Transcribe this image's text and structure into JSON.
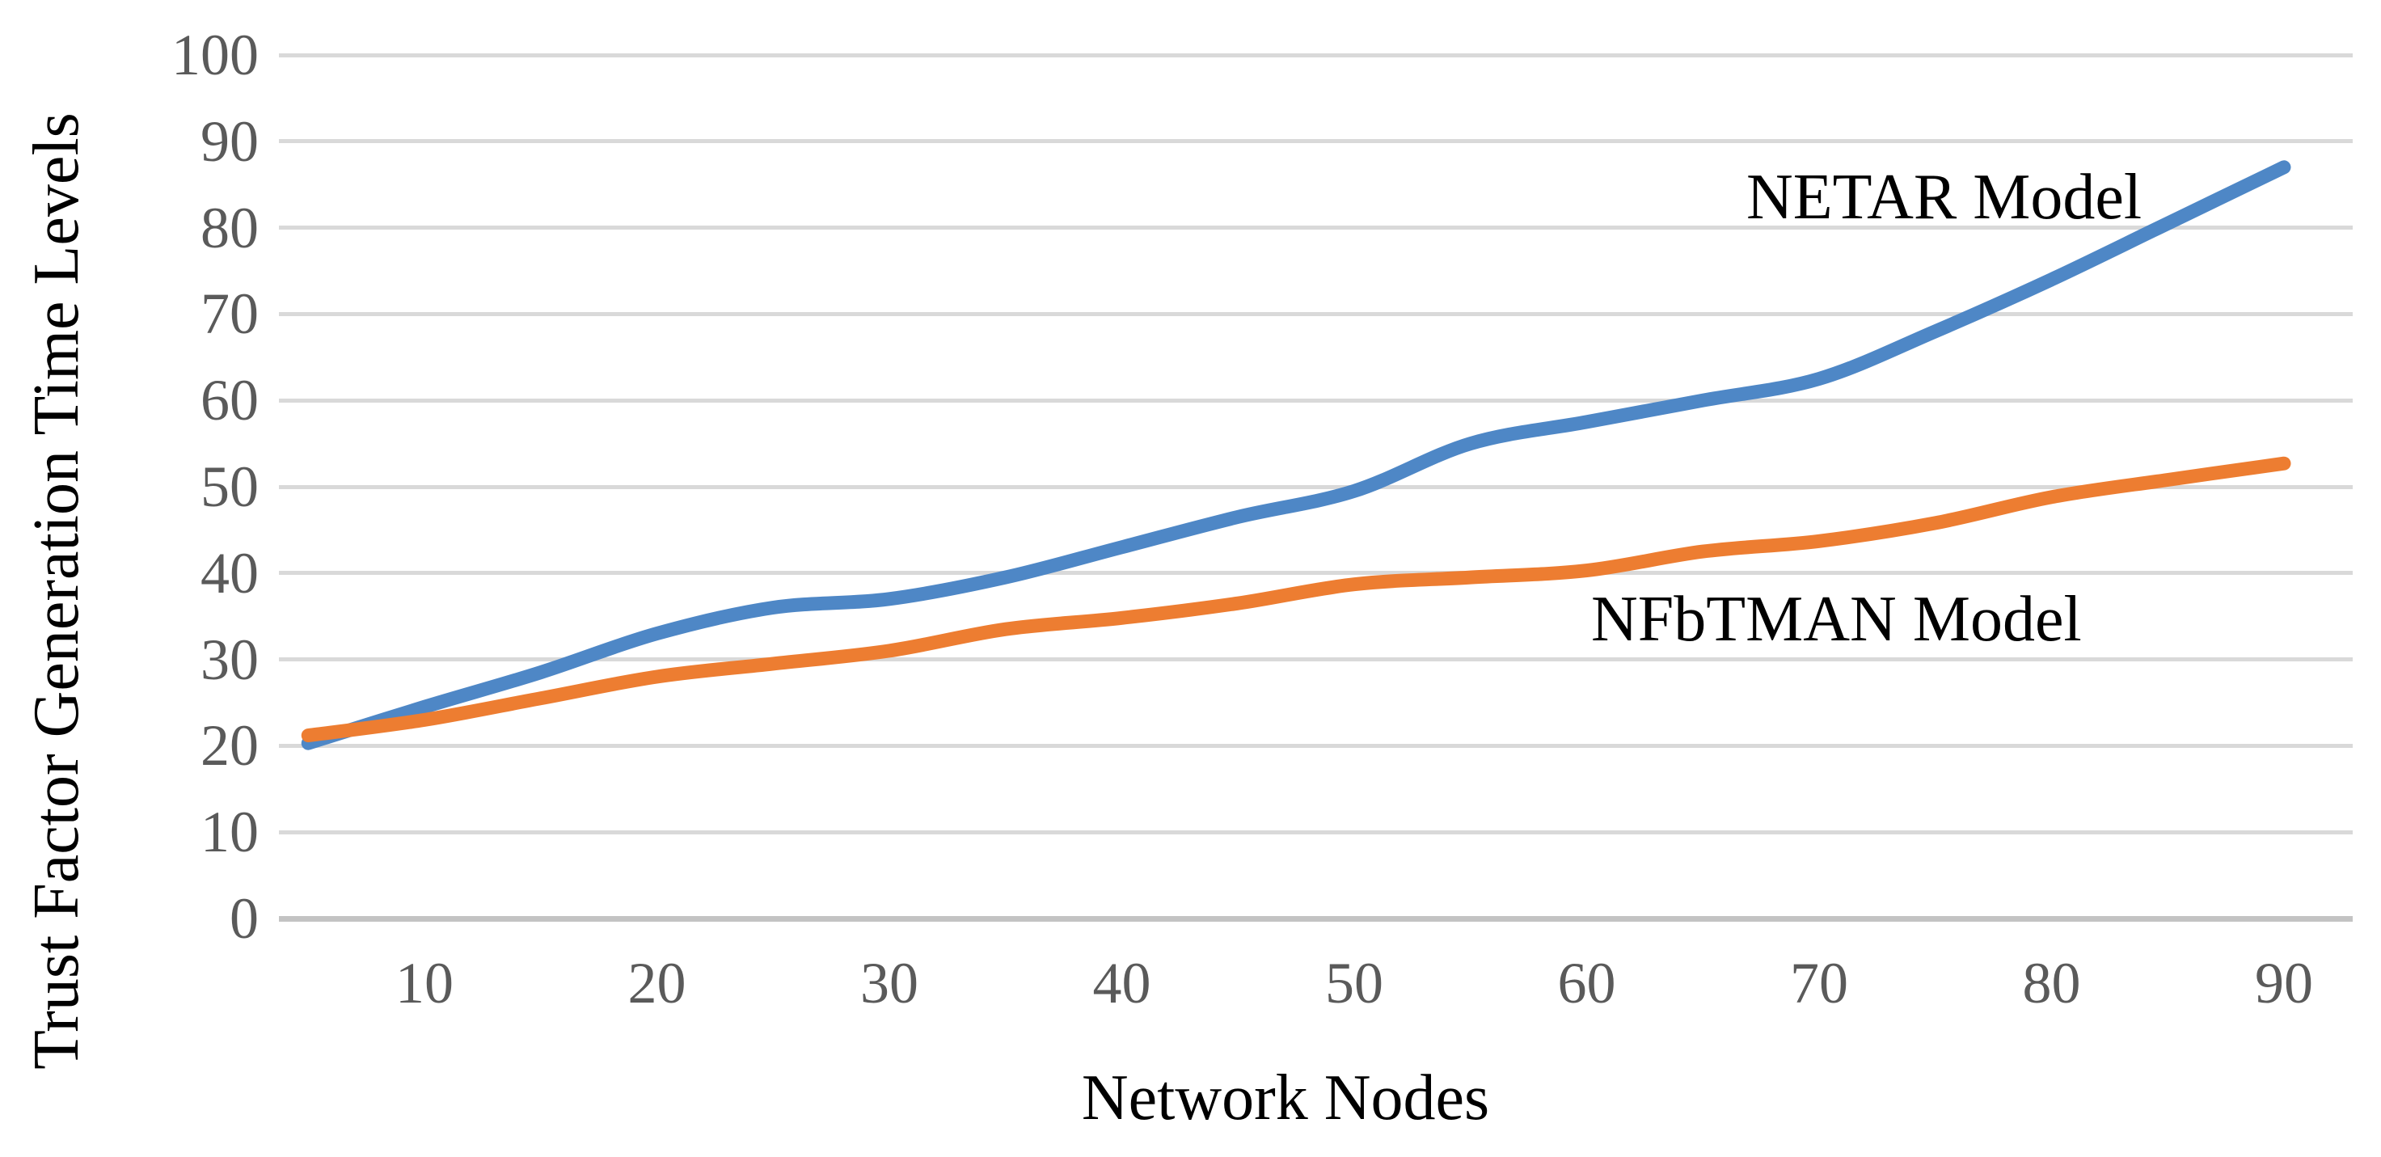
{
  "figure": {
    "y_axis_title": "Trust Factor Generation Time Levels",
    "x_axis_title": "Network Nodes",
    "annotations": {
      "netar_label": "NETAR Model",
      "nfbtman_label": "NFbTMAN Model"
    }
  },
  "chart_data": {
    "type": "line",
    "title": "",
    "xlabel": "Network Nodes",
    "ylabel": "Trust Factor Generation Time Levels",
    "x": [
      5,
      10,
      15,
      20,
      25,
      30,
      35,
      40,
      45,
      50,
      55,
      60,
      65,
      70,
      75,
      80,
      85,
      90
    ],
    "series": [
      {
        "name": "NETAR Model",
        "color": "#4e87c6",
        "values": [
          20.3,
          24.5,
          28.5,
          33,
          36,
          37,
          39.5,
          43,
          46.5,
          49.5,
          55,
          57.5,
          60,
          62.5,
          68,
          74,
          80.5,
          87
        ]
      },
      {
        "name": "NFbTMAN Model",
        "color": "#ed7d31",
        "values": [
          21.2,
          23,
          25.5,
          28,
          29.5,
          31,
          33.5,
          34.8,
          36.5,
          38.7,
          39.5,
          40.3,
          42.5,
          43.7,
          45.8,
          48.8,
          50.8,
          52.7
        ]
      }
    ],
    "xticks": [
      10,
      20,
      30,
      40,
      50,
      60,
      70,
      80,
      90
    ],
    "yticks": [
      0,
      10,
      20,
      30,
      40,
      50,
      60,
      70,
      80,
      90,
      100
    ],
    "ylim": [
      0,
      100
    ],
    "xlim": [
      5,
      90
    ],
    "grid": "horizontal",
    "gridline_color": "#d9d9d9",
    "axis_line_color": "#c3c3c3",
    "smoothed": true,
    "legend_position": "inline-annotations"
  }
}
